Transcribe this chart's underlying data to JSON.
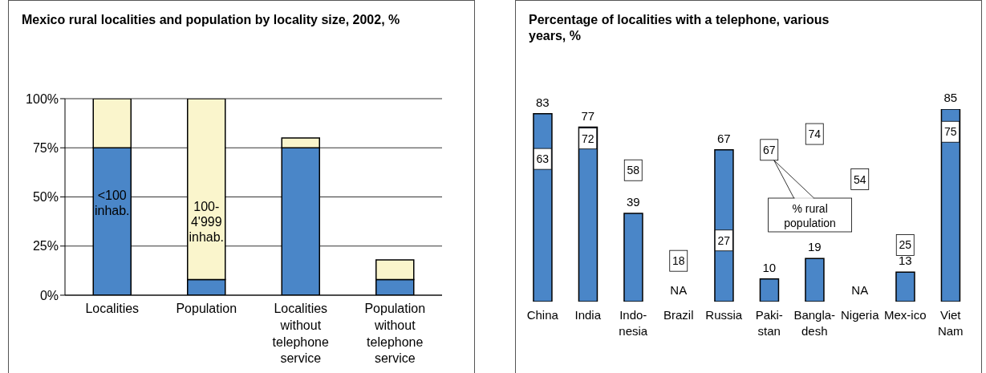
{
  "chart_data": [
    {
      "type": "bar",
      "title": "Mexico rural localities and population by locality size, 2002, %",
      "categories": [
        "Localities",
        "Population",
        "Localities without telephone service",
        "Population without telephone service"
      ],
      "stacked": true,
      "series": [
        {
          "name": "<100 inhab.",
          "color": "#4a86c8",
          "values": [
            75,
            8,
            75,
            8
          ]
        },
        {
          "name": "100-4'999 inhab.",
          "color": "#faf5cc",
          "values": [
            25,
            92,
            5,
            10
          ]
        }
      ],
      "ylim": [
        0,
        100
      ],
      "yticks": [
        {
          "value": 0,
          "label": "0%"
        },
        {
          "value": 25,
          "label": "25%"
        },
        {
          "value": 50,
          "label": "50%"
        },
        {
          "value": 75,
          "label": "75%"
        },
        {
          "value": 100,
          "label": "100%"
        }
      ],
      "grid": "y"
    },
    {
      "type": "bar",
      "title": "Percentage of localities with a telephone, various years, %",
      "categories": [
        "China",
        "India",
        "Indo-nesia",
        "Brazil",
        "Russia",
        "Paki-stan",
        "Bangla-desh",
        "Nigeria",
        "Mex-ico",
        "Viet Nam"
      ],
      "series": [
        {
          "color": "#4a86c8",
          "values": [
            83,
            77,
            39,
            null,
            67,
            10,
            19,
            null,
            13,
            85
          ],
          "value_labels": [
            "83",
            "77",
            "39",
            "NA",
            "67",
            "10",
            "19",
            "NA",
            "13",
            "85"
          ]
        },
        {
          "type": "scatter",
          "name": "% rural population",
          "marker": "square",
          "data_labels": true,
          "color": "#ffffff",
          "values": [
            63,
            72,
            58,
            18,
            27,
            67,
            74,
            54,
            25,
            75
          ]
        }
      ]
    }
  ]
}
